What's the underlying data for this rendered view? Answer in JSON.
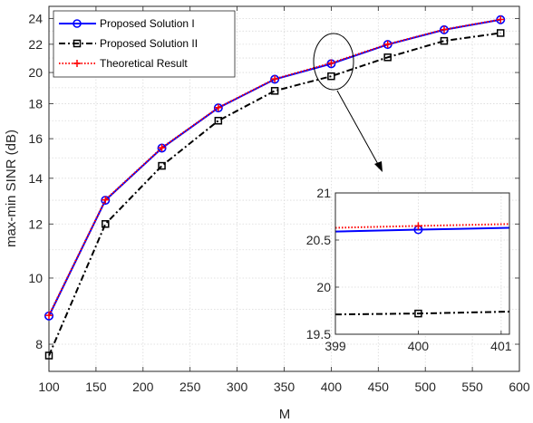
{
  "chart_data": {
    "type": "line",
    "xlabel": "M",
    "ylabel": "max-min SINR (dB)",
    "xlim": [
      100,
      600
    ],
    "ylim": [
      7.3,
      25
    ],
    "y_scale": "log",
    "grid": true,
    "legend_position": "top-left",
    "x_ticks": [
      100,
      150,
      200,
      250,
      300,
      350,
      400,
      450,
      500,
      550,
      600
    ],
    "y_ticks": [
      8,
      10,
      12,
      14,
      16,
      18,
      20,
      22,
      24
    ],
    "x": [
      100,
      160,
      220,
      280,
      340,
      400,
      460,
      520,
      580
    ],
    "series": [
      {
        "name": "Proposed Solution I",
        "color": "#0000ff",
        "marker": "circle",
        "line": "solid",
        "values": [
          8.8,
          13.0,
          15.5,
          17.75,
          19.55,
          20.6,
          21.98,
          23.1,
          23.9
        ]
      },
      {
        "name": "Proposed Solution II",
        "color": "#000000",
        "marker": "square",
        "line": "dashdot",
        "values": [
          7.7,
          12.0,
          14.6,
          17.0,
          18.8,
          19.75,
          21.05,
          22.25,
          22.85
        ]
      },
      {
        "name": "Theoretical Result",
        "color": "#ff0000",
        "marker": "plus",
        "line": "dotted",
        "values": [
          8.82,
          13.02,
          15.52,
          17.77,
          19.57,
          20.65,
          22.0,
          23.12,
          23.92
        ]
      }
    ],
    "inset": {
      "xlim": [
        399,
        401.1
      ],
      "ylim": [
        19.5,
        21
      ],
      "x_ticks": [
        399,
        400,
        401
      ],
      "y_ticks": [
        19.5,
        20,
        20.5,
        21
      ],
      "series": [
        {
          "name": "Proposed Solution I",
          "x": [
            399,
            400,
            401.1
          ],
          "values": [
            20.59,
            20.61,
            20.63
          ]
        },
        {
          "name": "Proposed Solution II",
          "x": [
            399,
            400,
            401.1
          ],
          "values": [
            19.71,
            19.72,
            19.74
          ]
        },
        {
          "name": "Theoretical Result",
          "x": [
            399,
            400,
            401.1
          ],
          "values": [
            20.63,
            20.65,
            20.67
          ]
        }
      ],
      "marker_x": 400
    }
  }
}
